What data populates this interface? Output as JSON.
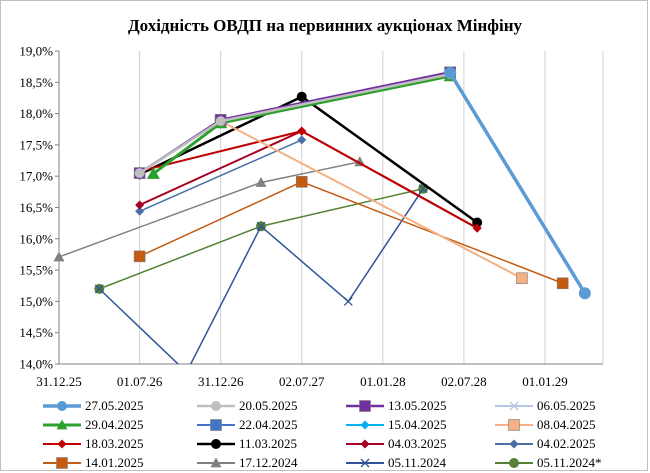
{
  "chart_data": {
    "type": "line",
    "title": "Дохідність ОВДП на первинних аукціонах Мінфіну",
    "xlabel": "",
    "ylabel": "",
    "x_ticks": [
      "31.12.25",
      "01.07.26",
      "31.12.26",
      "02.07.27",
      "01.01.28",
      "02.07.28",
      "01.01.29"
    ],
    "x_tick_dates": [
      "2025-12-31",
      "2026-07-01",
      "2026-12-31",
      "2027-07-02",
      "2028-01-01",
      "2028-07-02",
      "2029-01-01"
    ],
    "xlim": [
      "2025-12-31",
      "2029-05-12"
    ],
    "y_ticks": [
      "14,0%",
      "14,5%",
      "15,0%",
      "15,5%",
      "16,0%",
      "16,5%",
      "17,0%",
      "17,5%",
      "18,0%",
      "18,5%",
      "19,0%"
    ],
    "ylim": [
      14.0,
      19.0
    ],
    "grid": "vertical",
    "legend_position": "bottom",
    "series": [
      {
        "name": "27.05.2025",
        "color": "#5B9BD5",
        "marker": "circle",
        "width": 3.5,
        "points": [
          [
            "2028-06-01",
            18.65
          ],
          [
            "2029-04-01",
            15.13
          ]
        ]
      },
      {
        "name": "20.05.2025",
        "color": "#BFBFBF",
        "marker": "circle",
        "width": 2.5,
        "points": [
          [
            "2026-07-01",
            17.05
          ],
          [
            "2026-12-31",
            17.88
          ],
          [
            "2028-06-01",
            18.63
          ]
        ]
      },
      {
        "name": "13.05.2025",
        "color": "#7030A0",
        "marker": "square",
        "width": 2.5,
        "points": [
          [
            "2026-07-01",
            17.05
          ],
          [
            "2026-12-31",
            17.9
          ],
          [
            "2028-06-01",
            18.66
          ]
        ]
      },
      {
        "name": "06.05.2025",
        "color": "#B4C7E7",
        "marker": "x",
        "width": 2,
        "points": [
          [
            "2026-07-01",
            17.05
          ],
          [
            "2026-12-31",
            17.88
          ],
          [
            "2028-06-01",
            18.64
          ]
        ]
      },
      {
        "name": "29.04.2025",
        "color": "#2CA02C",
        "marker": "triangle",
        "width": 3,
        "points": [
          [
            "2026-08-01",
            17.04
          ],
          [
            "2026-12-31",
            17.85
          ],
          [
            "2028-06-01",
            18.6
          ]
        ]
      },
      {
        "name": "22.04.2025",
        "color": "#4472C4",
        "marker": "square",
        "width": 2,
        "points": [
          [
            "2026-12-31",
            17.88
          ],
          [
            "2028-06-01",
            18.65
          ]
        ]
      },
      {
        "name": "15.04.2025",
        "color": "#00B0F0",
        "marker": "diamond",
        "width": 2,
        "points": [
          [
            "2026-12-31",
            17.87
          ],
          [
            "2028-06-01",
            18.63
          ]
        ]
      },
      {
        "name": "08.04.2025",
        "color": "#F4B183",
        "marker": "square",
        "width": 2,
        "points": [
          [
            "2026-12-31",
            17.88
          ],
          [
            "2028-11-10",
            15.37
          ]
        ]
      },
      {
        "name": "18.03.2025",
        "color": "#C00000",
        "marker": "diamond",
        "width": 2,
        "points": [
          [
            "2026-07-01",
            17.08
          ],
          [
            "2027-07-02",
            17.72
          ],
          [
            "2028-08-01",
            16.17
          ]
        ]
      },
      {
        "name": "11.03.2025",
        "color": "#000000",
        "marker": "circle",
        "width": 2.5,
        "points": [
          [
            "2026-07-01",
            17.03
          ],
          [
            "2027-07-02",
            18.27
          ],
          [
            "2028-08-01",
            16.26
          ]
        ]
      },
      {
        "name": "04.03.2025",
        "color": "#A50021",
        "marker": "diamond",
        "width": 2,
        "points": [
          [
            "2026-07-01",
            16.54
          ],
          [
            "2027-07-02",
            17.72
          ],
          [
            "2028-08-01",
            16.17
          ]
        ]
      },
      {
        "name": "04.02.2025",
        "color": "#4A6FA5",
        "marker": "diamond",
        "width": 1.5,
        "points": [
          [
            "2026-07-01",
            16.44
          ],
          [
            "2027-07-02",
            17.58
          ]
        ]
      },
      {
        "name": "14.01.2025",
        "color": "#C55A11",
        "marker": "square",
        "width": 1.5,
        "points": [
          [
            "2026-07-01",
            15.72
          ],
          [
            "2027-07-02",
            16.91
          ],
          [
            "2029-02-10",
            15.29
          ]
        ]
      },
      {
        "name": "17.12.2024",
        "color": "#808080",
        "marker": "triangle",
        "width": 1.5,
        "points": [
          [
            "2025-12-31",
            15.71
          ],
          [
            "2027-04-01",
            16.9
          ],
          [
            "2027-11-10",
            17.23
          ]
        ]
      },
      {
        "name": "05.11.2024",
        "color": "#2F5597",
        "marker": "x",
        "width": 1.5,
        "points": [
          [
            "2026-04-01",
            15.2
          ],
          [
            "2026-10-15",
            13.87
          ],
          [
            "2027-04-01",
            16.2
          ],
          [
            "2027-10-15",
            15.0
          ],
          [
            "2028-04-01",
            16.8
          ]
        ]
      },
      {
        "name": "05.11.2024*",
        "color": "#548235",
        "marker": "circle",
        "width": 1.5,
        "points": [
          [
            "2026-04-01",
            15.2
          ],
          [
            "2027-04-01",
            16.2
          ],
          [
            "2028-04-01",
            16.8
          ]
        ]
      }
    ]
  }
}
